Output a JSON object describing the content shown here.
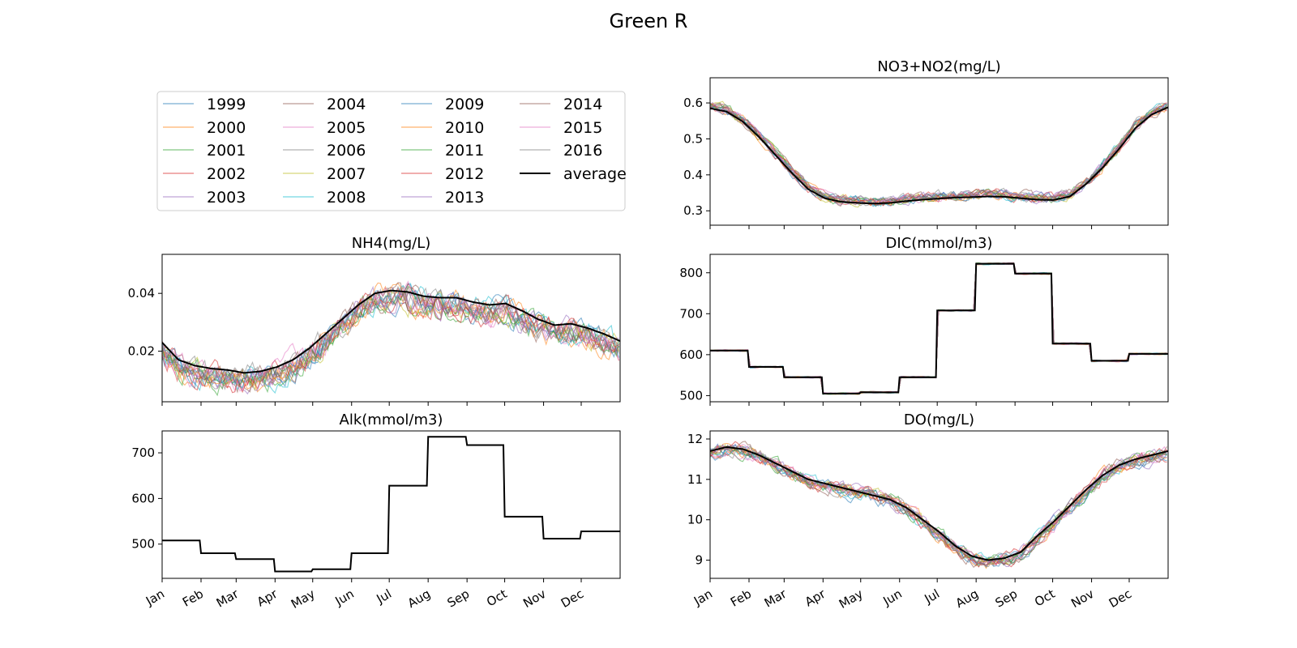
{
  "figure": {
    "title": "Green R"
  },
  "chart_data": {
    "months": [
      "Jan",
      "Feb",
      "Mar",
      "Apr",
      "May",
      "Jun",
      "Jul",
      "Aug",
      "Sep",
      "Oct",
      "Nov",
      "Dec"
    ],
    "legend": {
      "entries": [
        "1999",
        "2000",
        "2001",
        "2002",
        "2003",
        "2004",
        "2005",
        "2006",
        "2007",
        "2008",
        "2009",
        "2010",
        "2011",
        "2012",
        "2013",
        "2014",
        "2015",
        "2016",
        "average"
      ],
      "columns": 4,
      "placement": "top-left panel"
    },
    "year_colors": [
      "#1f77b4",
      "#ff7f0e",
      "#2ca02c",
      "#d62728",
      "#9467bd",
      "#8c564b",
      "#e377c2",
      "#7f7f7f",
      "#bcbd22",
      "#17becf",
      "#1f77b4",
      "#ff7f0e",
      "#2ca02c",
      "#d62728",
      "#9467bd",
      "#8c564b",
      "#e377c2",
      "#7f7f7f"
    ],
    "average_color": "#000000",
    "panels": [
      {
        "id": "no3",
        "type": "line",
        "title": "NO3+NO2(mg/L)",
        "ylim": [
          0.26,
          0.67
        ],
        "yticks": [
          0.3,
          0.4,
          0.5,
          0.6
        ],
        "ytick_labels": [
          "0.3",
          "0.4",
          "0.5",
          "0.6"
        ],
        "show_xticklabels": false,
        "average": [
          0.585,
          0.576,
          0.548,
          0.505,
          0.455,
          0.405,
          0.36,
          0.335,
          0.325,
          0.322,
          0.32,
          0.322,
          0.327,
          0.331,
          0.334,
          0.337,
          0.338,
          0.34,
          0.339,
          0.335,
          0.331,
          0.33,
          0.34,
          0.375,
          0.42,
          0.472,
          0.53,
          0.568,
          0.588
        ],
        "spread": 0.018,
        "step": false
      },
      {
        "id": "nh4",
        "type": "line",
        "title": "NH4(mg/L)",
        "ylim": [
          0.0025,
          0.0535
        ],
        "yticks": [
          0.02,
          0.04
        ],
        "ytick_labels": [
          "0.02",
          "0.04"
        ],
        "show_xticklabels": false,
        "average": [
          0.023,
          0.017,
          0.015,
          0.014,
          0.0135,
          0.0125,
          0.013,
          0.0145,
          0.017,
          0.021,
          0.026,
          0.031,
          0.036,
          0.04,
          0.041,
          0.0405,
          0.039,
          0.0385,
          0.0385,
          0.037,
          0.036,
          0.0365,
          0.034,
          0.031,
          0.029,
          0.0295,
          0.028,
          0.026,
          0.0235
        ],
        "spread": 0.006,
        "step": false
      },
      {
        "id": "dic",
        "type": "line",
        "title": "DIC(mmol/m3)",
        "ylim": [
          485,
          845
        ],
        "yticks": [
          500,
          600,
          700,
          800
        ],
        "ytick_labels": [
          "500",
          "600",
          "700",
          "800"
        ],
        "show_xticklabels": false,
        "average": [
          610,
          570,
          545,
          505,
          508,
          545,
          708,
          822,
          798,
          627,
          585,
          602,
          634
        ],
        "spread": 4,
        "step": true
      },
      {
        "id": "alk",
        "type": "line",
        "title": "Alk(mmol/m3)",
        "ylim": [
          425,
          748
        ],
        "yticks": [
          500,
          600,
          700
        ],
        "ytick_labels": [
          "500",
          "600",
          "700"
        ],
        "show_xticklabels": true,
        "average": [
          508,
          480,
          467,
          440,
          445,
          480,
          628,
          735,
          717,
          560,
          512,
          528,
          528
        ],
        "spread": 0,
        "step": true
      },
      {
        "id": "do",
        "type": "line",
        "title": "DO(mg/L)",
        "ylim": [
          8.55,
          12.2
        ],
        "yticks": [
          9,
          10,
          11,
          12
        ],
        "ytick_labels": [
          "9",
          "10",
          "11",
          "12"
        ],
        "show_xticklabels": true,
        "average": [
          11.7,
          11.8,
          11.75,
          11.6,
          11.4,
          11.2,
          11.0,
          10.9,
          10.8,
          10.7,
          10.6,
          10.5,
          10.3,
          10.0,
          9.7,
          9.35,
          9.1,
          9.0,
          9.05,
          9.2,
          9.6,
          9.95,
          10.35,
          10.75,
          11.1,
          11.35,
          11.5,
          11.6,
          11.7
        ],
        "spread": 0.22,
        "step": false
      }
    ]
  }
}
